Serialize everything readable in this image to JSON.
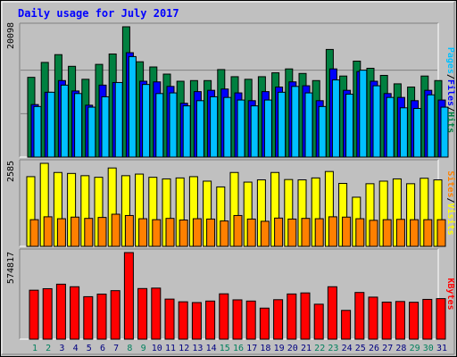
{
  "chart_data": [
    {
      "panel": "hits-files-pages",
      "type": "bar",
      "title": "Daily usage for July 2017",
      "ytick_label": "20098",
      "ylim": [
        0,
        20098
      ],
      "categories": [
        "1",
        "2",
        "3",
        "4",
        "5",
        "6",
        "7",
        "8",
        "9",
        "10",
        "11",
        "12",
        "13",
        "14",
        "15",
        "16",
        "17",
        "18",
        "19",
        "20",
        "21",
        "22",
        "23",
        "24",
        "25",
        "26",
        "27",
        "28",
        "29",
        "30",
        "31"
      ],
      "series": [
        {
          "name": "Hits",
          "color": "#008040",
          "values": [
            12300,
            14600,
            15800,
            14000,
            12000,
            14300,
            15900,
            20098,
            14700,
            13900,
            12800,
            11700,
            11800,
            11800,
            13500,
            12400,
            12000,
            12400,
            13000,
            13600,
            12900,
            11800,
            16600,
            12500,
            14800,
            13700,
            12600,
            11300,
            10800,
            12500,
            11800
          ]
        },
        {
          "name": "Files",
          "color": "#0000ff",
          "values": [
            8100,
            10000,
            11800,
            10200,
            8000,
            11100,
            11500,
            16100,
            11700,
            11600,
            10900,
            8300,
            10100,
            10300,
            10500,
            9900,
            8700,
            10100,
            10800,
            11600,
            11000,
            8700,
            13600,
            10300,
            13200,
            11700,
            9800,
            9200,
            8700,
            10300,
            8800
          ]
        },
        {
          "name": "Pages",
          "color": "#00c0ff",
          "values": [
            7800,
            10000,
            11100,
            9800,
            7700,
            9300,
            11500,
            15500,
            11200,
            9800,
            9900,
            7900,
            8700,
            9300,
            9200,
            8800,
            7900,
            8800,
            10000,
            10900,
            9900,
            7800,
            11900,
            9700,
            13400,
            11000,
            9200,
            7600,
            7500,
            9600,
            7700
          ]
        }
      ],
      "legend": [
        "Pages",
        "/",
        "Files",
        "/",
        "Hits"
      ],
      "legend_colors": [
        "#00c0ff",
        "#000000",
        "#0000ff",
        "#000000",
        "#008040"
      ]
    },
    {
      "panel": "visits-sites",
      "type": "bar",
      "ytick_label": "2585",
      "ylim": [
        0,
        2585
      ],
      "categories": [
        "1",
        "2",
        "3",
        "4",
        "5",
        "6",
        "7",
        "8",
        "9",
        "10",
        "11",
        "12",
        "13",
        "14",
        "15",
        "16",
        "17",
        "18",
        "19",
        "20",
        "21",
        "22",
        "23",
        "24",
        "25",
        "26",
        "27",
        "28",
        "29",
        "30",
        "31"
      ],
      "series": [
        {
          "name": "Visits",
          "color": "#ffff00",
          "values": [
            2170,
            2585,
            2300,
            2270,
            2200,
            2150,
            2440,
            2200,
            2250,
            2150,
            2100,
            2130,
            2170,
            2030,
            1850,
            2300,
            2000,
            2070,
            2300,
            2080,
            2070,
            2130,
            2330,
            1960,
            1530,
            1950,
            2030,
            2100,
            1950,
            2120,
            2070
          ]
        },
        {
          "name": "Sites",
          "color": "#ff8000",
          "values": [
            830,
            920,
            860,
            910,
            870,
            900,
            1000,
            960,
            860,
            830,
            870,
            820,
            860,
            850,
            790,
            960,
            850,
            780,
            880,
            850,
            870,
            860,
            920,
            910,
            860,
            810,
            830,
            840,
            830,
            830,
            830
          ]
        }
      ],
      "legend": [
        "Sites",
        "/",
        "Visits"
      ],
      "legend_colors": [
        "#ff8000",
        "#000000",
        "#ffff00"
      ]
    },
    {
      "panel": "kbytes",
      "type": "bar",
      "ytick_label": "574817",
      "ylim": [
        0,
        574817
      ],
      "categories": [
        "1",
        "2",
        "3",
        "4",
        "5",
        "6",
        "7",
        "8",
        "9",
        "10",
        "11",
        "12",
        "13",
        "14",
        "15",
        "16",
        "17",
        "18",
        "19",
        "20",
        "21",
        "22",
        "23",
        "24",
        "25",
        "26",
        "27",
        "28",
        "29",
        "30",
        "31"
      ],
      "series": [
        {
          "name": "KBytes",
          "color": "#ff0000",
          "values": [
            325000,
            335000,
            365000,
            348000,
            282000,
            299000,
            322000,
            574817,
            336000,
            339000,
            266000,
            248000,
            243000,
            253000,
            301000,
            261000,
            253000,
            206000,
            262000,
            300000,
            307000,
            232000,
            348000,
            191000,
            310000,
            279000,
            246000,
            250000,
            245000,
            264000,
            269000
          ]
        }
      ],
      "legend": [
        "KBytes"
      ],
      "legend_colors": [
        "#ff0000"
      ]
    }
  ],
  "xaxis": {
    "days": [
      "1",
      "2",
      "3",
      "4",
      "5",
      "6",
      "7",
      "8",
      "9",
      "10",
      "11",
      "12",
      "13",
      "14",
      "15",
      "16",
      "17",
      "18",
      "19",
      "20",
      "21",
      "22",
      "23",
      "24",
      "25",
      "26",
      "27",
      "28",
      "29",
      "30",
      "31"
    ],
    "weekend_days": [
      "1",
      "2",
      "8",
      "9",
      "15",
      "16",
      "22",
      "23",
      "29",
      "30"
    ],
    "weekend_color": "#00805c",
    "weekday_color": "#000080"
  },
  "colors": {
    "background": "#c0c0c0",
    "title": "#0000ff"
  }
}
